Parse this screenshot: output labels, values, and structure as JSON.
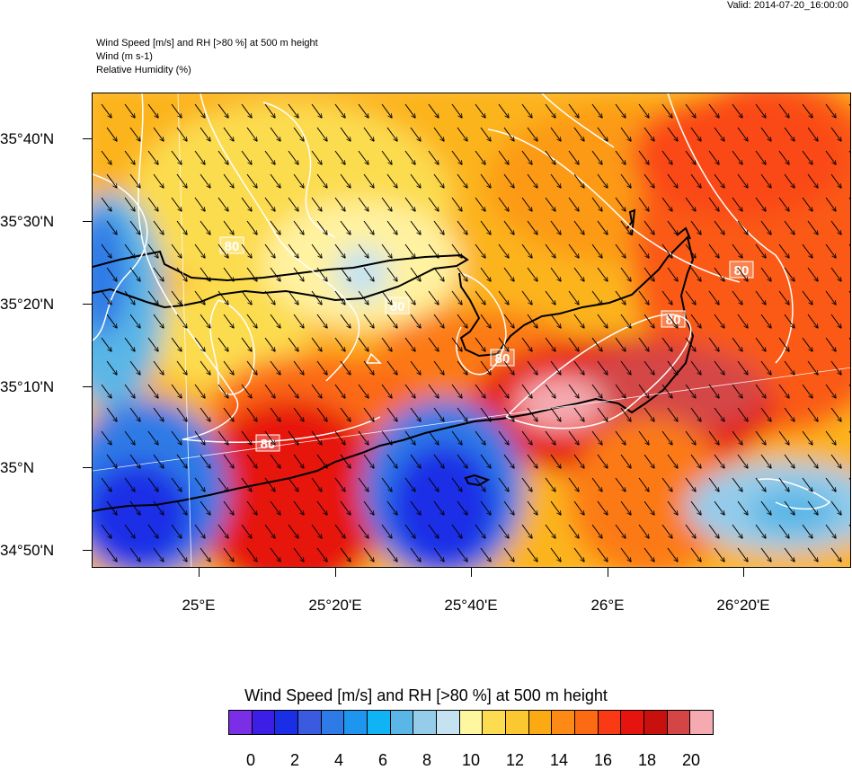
{
  "valid_label": "Valid: 2014-07-20_16:00:00",
  "header": {
    "line1": "Wind Speed [m/s] and RH [>80 %] at 500 m height",
    "line2": "Wind   (m s-1)",
    "line3": "Relative Humidity   (%)"
  },
  "lat_labels": [
    "35°40'N",
    "35°30'N",
    "35°20'N",
    "35°10'N",
    "35°N",
    "34°50'N"
  ],
  "lon_labels": [
    "25°E",
    "25°20'E",
    "25°40'E",
    "26°E",
    "26°20'E"
  ],
  "contour_labels": [
    "80",
    "80",
    "80",
    "80",
    "80",
    "80"
  ],
  "colorbar": {
    "title": "Wind Speed [m/s] and RH [>80 %] at 500 m height",
    "labels": [
      "0",
      "2",
      "4",
      "6",
      "8",
      "10",
      "12",
      "14",
      "16",
      "18",
      "20"
    ],
    "colors": [
      "#7a2ee6",
      "#3d1ee6",
      "#1a2ee6",
      "#3a5ae0",
      "#2e7ae6",
      "#1e96f0",
      "#10b4f4",
      "#5ab6e6",
      "#94ccea",
      "#c4e2f0",
      "#fff6a0",
      "#fcdc50",
      "#fcc832",
      "#fcaa14",
      "#fc8a14",
      "#fc6a14",
      "#fa3a14",
      "#e6140e",
      "#c8100e",
      "#d44646",
      "#f4aab0"
    ]
  }
}
